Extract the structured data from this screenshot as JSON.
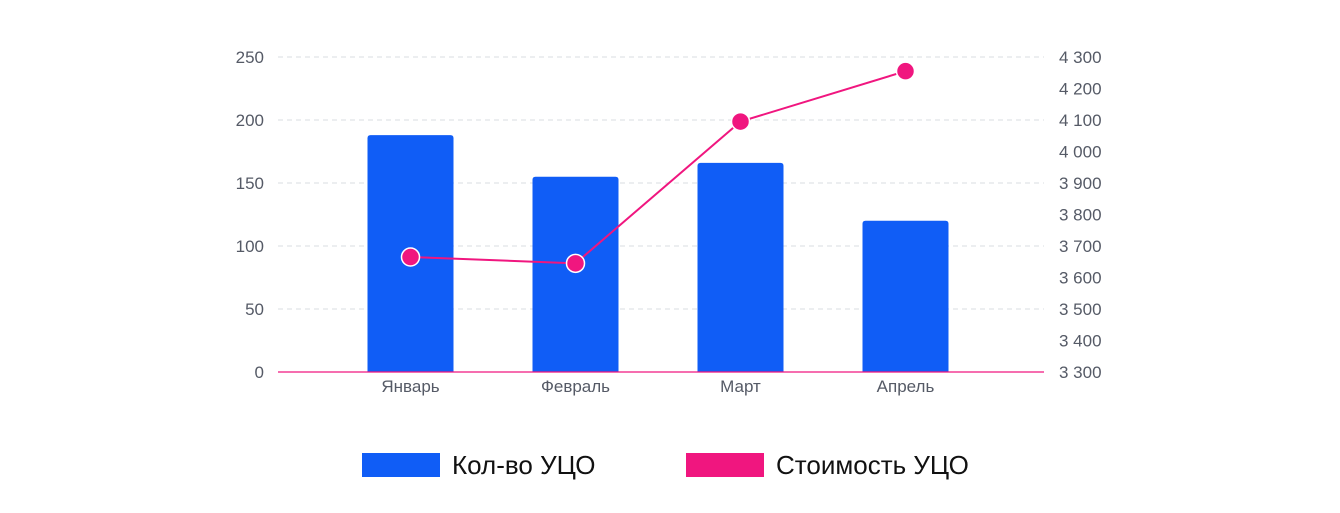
{
  "chart_data": {
    "type": "bar",
    "categories": [
      "Январь",
      "Февраль",
      "Март",
      "Апрель"
    ],
    "series": [
      {
        "name": "Кол-во УЦО",
        "type": "bar",
        "axis": "left",
        "color": "#105DF6",
        "values": [
          188,
          155,
          166,
          120
        ]
      },
      {
        "name": "Стоимость УЦО",
        "type": "line",
        "axis": "right",
        "color": "#F0167F",
        "values": [
          3665,
          3645,
          4095,
          4255
        ]
      }
    ],
    "y_left": {
      "ylim": [
        0,
        250
      ],
      "ticks": [
        "0",
        "50",
        "100",
        "150",
        "200",
        "250"
      ]
    },
    "y_right": {
      "ylim": [
        3300,
        4300
      ],
      "ticks": [
        "3 300",
        "3 400",
        "3 500",
        "3 600",
        "3 700",
        "3 800",
        "3 900",
        "4 000",
        "4 100",
        "4 200",
        "4 300"
      ]
    },
    "grid": true,
    "legend_position": "bottom"
  },
  "legend": [
    {
      "label": "Кол-во УЦО",
      "color": "#105DF6"
    },
    {
      "label": "Стоимость УЦО",
      "color": "#F0167F"
    }
  ]
}
